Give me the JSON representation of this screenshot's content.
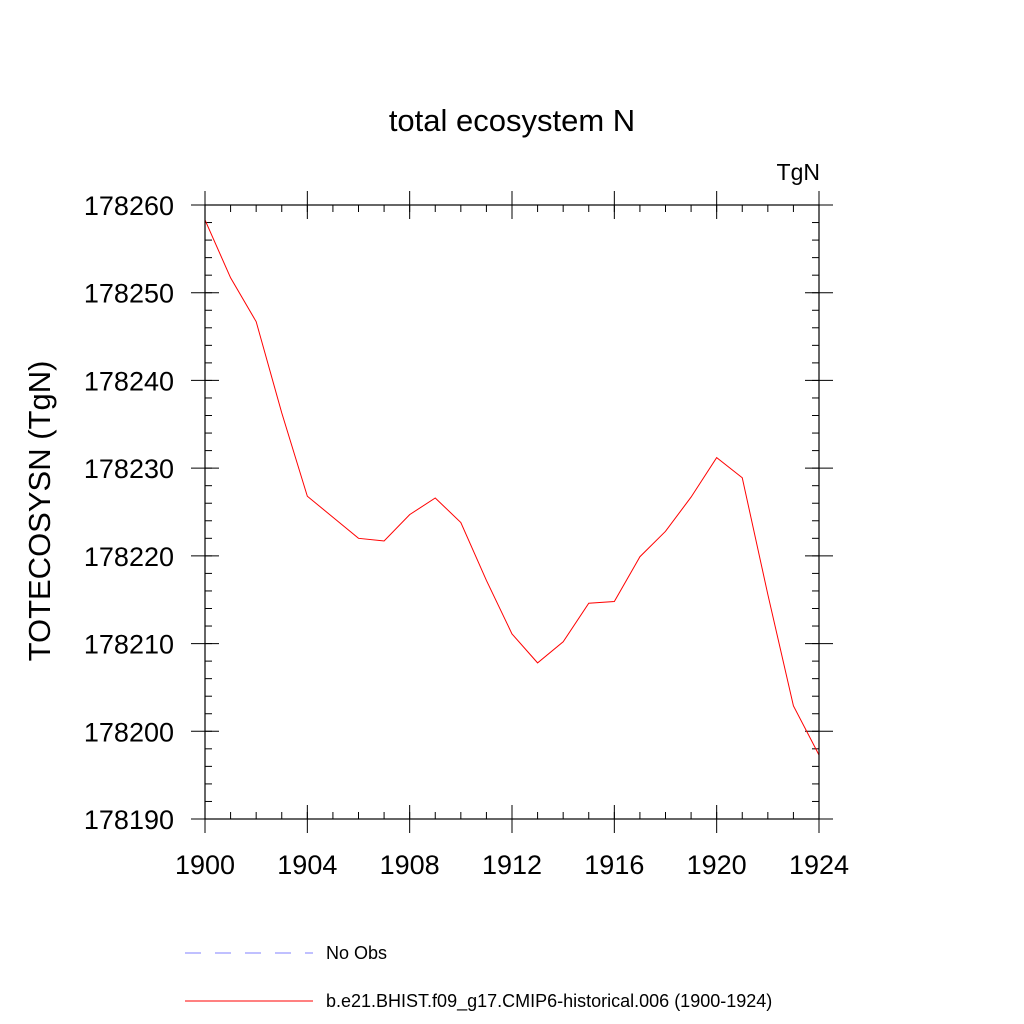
{
  "chart_data": {
    "type": "line",
    "title": "total ecosystem N",
    "units_label": "TgN",
    "ylabel": "TOTECOSYSN  (TgN)",
    "xlabel": "",
    "xlim": [
      1900,
      1924
    ],
    "ylim": [
      178190,
      178260
    ],
    "x_ticks": [
      "1900",
      "1904",
      "1908",
      "1912",
      "1916",
      "1920",
      "1924"
    ],
    "y_ticks": [
      "178190",
      "178200",
      "178210",
      "178220",
      "178230",
      "178240",
      "178250",
      "178260"
    ],
    "x_tick_values": [
      1900,
      1904,
      1908,
      1912,
      1916,
      1920,
      1924
    ],
    "y_tick_values": [
      178190,
      178200,
      178210,
      178220,
      178230,
      178240,
      178250,
      178260
    ],
    "x_minor_step": 1,
    "y_minor_step": 2,
    "legend_placement": "bottom",
    "series": [
      {
        "name": "b.e21.BHIST.f09_g17.CMIP6-historical.006 (1900-1924)",
        "color": "#ff0000",
        "dash": "solid",
        "x": [
          1900,
          1901,
          1902,
          1903,
          1904,
          1905,
          1906,
          1907,
          1908,
          1909,
          1910,
          1911,
          1912,
          1913,
          1914,
          1915,
          1916,
          1917,
          1918,
          1919,
          1920,
          1921,
          1922,
          1923,
          1924
        ],
        "values": [
          178258.3,
          178251.7,
          178246.7,
          178236.3,
          178226.8,
          178224.4,
          178222.0,
          178221.7,
          178224.7,
          178226.6,
          178223.8,
          178217.2,
          178211.1,
          178207.8,
          178210.2,
          178214.6,
          178214.8,
          178219.9,
          178222.8,
          178226.7,
          178231.2,
          178228.9,
          178215.6,
          178202.9,
          178197.3
        ]
      }
    ],
    "legend": [
      {
        "label": "No Obs",
        "color": "#8080ff",
        "dash": "dashed"
      },
      {
        "label": "b.e21.BHIST.f09_g17.CMIP6-historical.006 (1900-1924)",
        "color": "#ff0000",
        "dash": "solid"
      }
    ]
  }
}
